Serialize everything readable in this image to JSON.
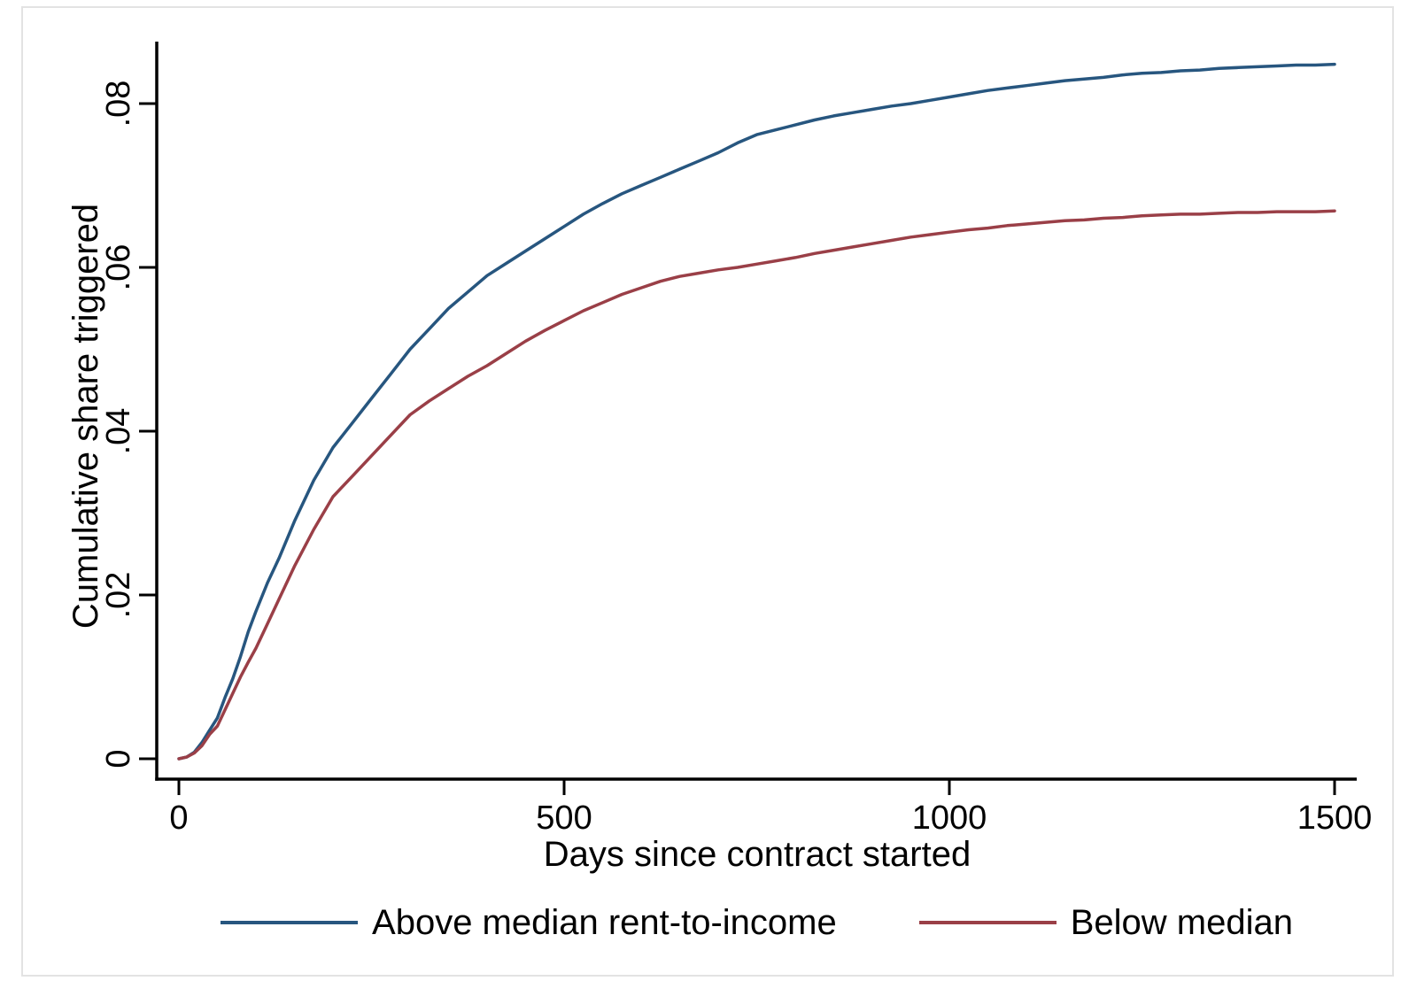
{
  "chart_data": {
    "type": "line",
    "title": "",
    "xlabel": "Days since contract started",
    "ylabel": "Cumulative share triggered",
    "xlim": [
      0,
      1500
    ],
    "ylim": [
      0,
      0.08
    ],
    "grid": false,
    "legend_position": "bottom-center",
    "axis_color": "#000000",
    "x_ticks": [
      0,
      500,
      1000,
      1500
    ],
    "x_tick_labels": [
      "0",
      "500",
      "1000",
      "1500"
    ],
    "y_ticks": [
      0,
      0.02,
      0.04,
      0.06,
      0.08
    ],
    "y_tick_labels": [
      "0",
      ".02",
      ".04",
      ".06",
      ".08"
    ],
    "series": [
      {
        "name": "Above median rent-to-income",
        "color": "#27567f",
        "points": [
          [
            0,
            0
          ],
          [
            10,
            0.0002
          ],
          [
            20,
            0.0008
          ],
          [
            30,
            0.002
          ],
          [
            40,
            0.0035
          ],
          [
            50,
            0.005
          ],
          [
            60,
            0.0075
          ],
          [
            70,
            0.0098
          ],
          [
            80,
            0.0125
          ],
          [
            90,
            0.0155
          ],
          [
            100,
            0.018
          ],
          [
            115,
            0.0215
          ],
          [
            130,
            0.0245
          ],
          [
            150,
            0.029
          ],
          [
            175,
            0.034
          ],
          [
            200,
            0.038
          ],
          [
            225,
            0.041
          ],
          [
            250,
            0.044
          ],
          [
            275,
            0.047
          ],
          [
            300,
            0.05
          ],
          [
            325,
            0.0525
          ],
          [
            350,
            0.055
          ],
          [
            375,
            0.057
          ],
          [
            400,
            0.059
          ],
          [
            425,
            0.0605
          ],
          [
            450,
            0.062
          ],
          [
            475,
            0.0635
          ],
          [
            500,
            0.065
          ],
          [
            525,
            0.0665
          ],
          [
            550,
            0.0678
          ],
          [
            575,
            0.069
          ],
          [
            600,
            0.07
          ],
          [
            625,
            0.071
          ],
          [
            650,
            0.072
          ],
          [
            675,
            0.073
          ],
          [
            700,
            0.074
          ],
          [
            725,
            0.0752
          ],
          [
            750,
            0.0762
          ],
          [
            775,
            0.0768
          ],
          [
            800,
            0.0774
          ],
          [
            825,
            0.078
          ],
          [
            850,
            0.0785
          ],
          [
            875,
            0.0789
          ],
          [
            900,
            0.0793
          ],
          [
            925,
            0.0797
          ],
          [
            950,
            0.08
          ],
          [
            975,
            0.0804
          ],
          [
            1000,
            0.0808
          ],
          [
            1025,
            0.0812
          ],
          [
            1050,
            0.0816
          ],
          [
            1075,
            0.0819
          ],
          [
            1100,
            0.0822
          ],
          [
            1125,
            0.0825
          ],
          [
            1150,
            0.0828
          ],
          [
            1175,
            0.083
          ],
          [
            1200,
            0.0832
          ],
          [
            1225,
            0.0835
          ],
          [
            1250,
            0.0837
          ],
          [
            1275,
            0.0838
          ],
          [
            1300,
            0.084
          ],
          [
            1325,
            0.0841
          ],
          [
            1350,
            0.0843
          ],
          [
            1375,
            0.0844
          ],
          [
            1400,
            0.0845
          ],
          [
            1425,
            0.0846
          ],
          [
            1450,
            0.0847
          ],
          [
            1475,
            0.0847
          ],
          [
            1500,
            0.0848
          ]
        ]
      },
      {
        "name": "Below median",
        "color": "#9a3f47",
        "points": [
          [
            0,
            0
          ],
          [
            10,
            0.0002
          ],
          [
            20,
            0.0007
          ],
          [
            30,
            0.0016
          ],
          [
            40,
            0.003
          ],
          [
            50,
            0.004
          ],
          [
            60,
            0.006
          ],
          [
            70,
            0.008
          ],
          [
            80,
            0.01
          ],
          [
            90,
            0.0118
          ],
          [
            100,
            0.0135
          ],
          [
            115,
            0.0165
          ],
          [
            130,
            0.0195
          ],
          [
            150,
            0.0235
          ],
          [
            175,
            0.028
          ],
          [
            200,
            0.032
          ],
          [
            225,
            0.0345
          ],
          [
            250,
            0.037
          ],
          [
            275,
            0.0395
          ],
          [
            300,
            0.042
          ],
          [
            325,
            0.0437
          ],
          [
            350,
            0.0452
          ],
          [
            375,
            0.0467
          ],
          [
            400,
            0.048
          ],
          [
            425,
            0.0495
          ],
          [
            450,
            0.051
          ],
          [
            475,
            0.0523
          ],
          [
            500,
            0.0535
          ],
          [
            525,
            0.0547
          ],
          [
            550,
            0.0557
          ],
          [
            575,
            0.0567
          ],
          [
            600,
            0.0575
          ],
          [
            625,
            0.0583
          ],
          [
            650,
            0.0589
          ],
          [
            675,
            0.0593
          ],
          [
            700,
            0.0597
          ],
          [
            725,
            0.06
          ],
          [
            750,
            0.0604
          ],
          [
            775,
            0.0608
          ],
          [
            800,
            0.0612
          ],
          [
            825,
            0.0617
          ],
          [
            850,
            0.0621
          ],
          [
            875,
            0.0625
          ],
          [
            900,
            0.0629
          ],
          [
            925,
            0.0633
          ],
          [
            950,
            0.0637
          ],
          [
            975,
            0.064
          ],
          [
            1000,
            0.0643
          ],
          [
            1025,
            0.0646
          ],
          [
            1050,
            0.0648
          ],
          [
            1075,
            0.0651
          ],
          [
            1100,
            0.0653
          ],
          [
            1125,
            0.0655
          ],
          [
            1150,
            0.0657
          ],
          [
            1175,
            0.0658
          ],
          [
            1200,
            0.066
          ],
          [
            1225,
            0.0661
          ],
          [
            1250,
            0.0663
          ],
          [
            1275,
            0.0664
          ],
          [
            1300,
            0.0665
          ],
          [
            1325,
            0.0665
          ],
          [
            1350,
            0.0666
          ],
          [
            1375,
            0.0667
          ],
          [
            1400,
            0.0667
          ],
          [
            1425,
            0.0668
          ],
          [
            1450,
            0.0668
          ],
          [
            1475,
            0.0668
          ],
          [
            1500,
            0.0669
          ]
        ]
      }
    ]
  }
}
